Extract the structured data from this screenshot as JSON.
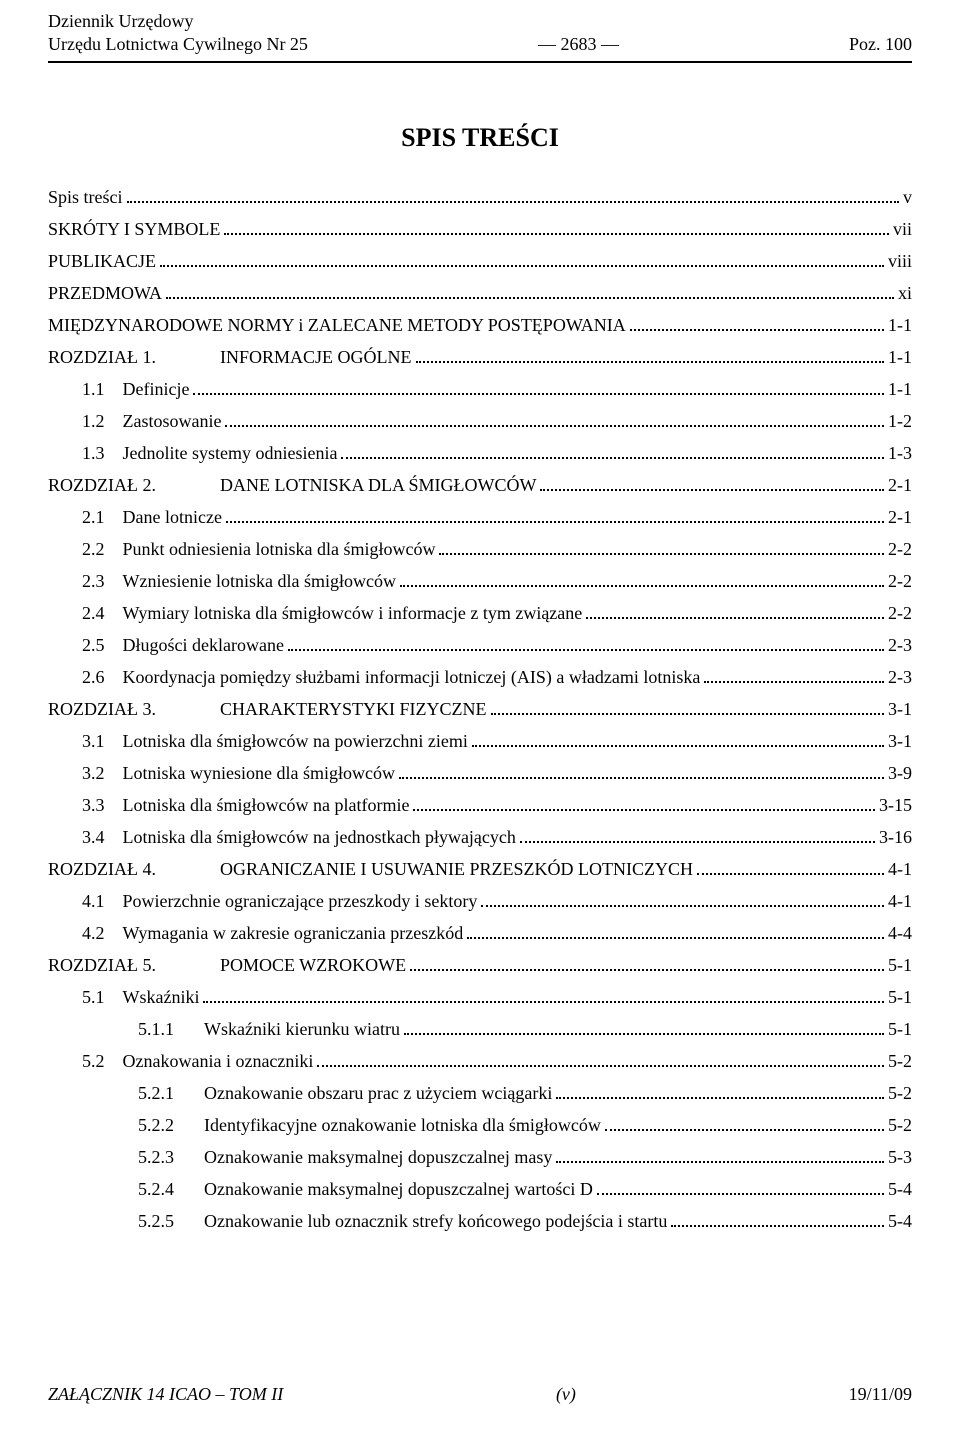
{
  "header": {
    "left_line1": "Dziennik Urzędowy",
    "left_line2": "Urzędu Lotnictwa Cywilnego Nr 25",
    "center": "— 2683 —",
    "right": "Poz. 100"
  },
  "title": "SPIS TREŚCI",
  "toc": [
    {
      "type": "top",
      "label": "Spis treści",
      "page": "v"
    },
    {
      "type": "top",
      "label": "SKRÓTY I SYMBOLE",
      "page": "vii"
    },
    {
      "type": "top",
      "label": "PUBLIKACJE",
      "page": " viii"
    },
    {
      "type": "top",
      "label": "PRZEDMOWA",
      "page": "xi"
    },
    {
      "type": "top",
      "label": "MIĘDZYNARODOWE NORMY i  ZALECANE METODY POSTĘPOWANIA",
      "page": " 1-1"
    },
    {
      "type": "chapter",
      "label": "ROZDZIAŁ 1.",
      "section": "INFORMACJE OGÓLNE",
      "page": " 1-1"
    },
    {
      "type": "sub1",
      "num": "1.1",
      "label": "Definicje",
      "page": " 1-1"
    },
    {
      "type": "sub1",
      "num": "1.2",
      "label": "Zastosowanie",
      "page": " 1-2"
    },
    {
      "type": "sub1",
      "num": "1.3",
      "label": "Jednolite systemy odniesienia",
      "page": " 1-3"
    },
    {
      "type": "chapter",
      "label": "ROZDZIAŁ 2.",
      "section": "DANE LOTNISKA DLA ŚMIGŁOWCÓW",
      "page": " 2-1"
    },
    {
      "type": "sub1",
      "num": "2.1",
      "label": "Dane lotnicze",
      "page": " 2-1"
    },
    {
      "type": "sub1",
      "num": "2.2",
      "label": "Punkt odniesienia lotniska dla śmigłowców",
      "page": " 2-2"
    },
    {
      "type": "sub1",
      "num": "2.3",
      "label": "Wzniesienie lotniska dla śmigłowców",
      "page": " 2-2"
    },
    {
      "type": "sub1",
      "num": "2.4",
      "label": "Wymiary lotniska dla śmigłowców i informacje z tym związane",
      "page": "2-2"
    },
    {
      "type": "sub1",
      "num": "2.5",
      "label": "Długości deklarowane",
      "page": " 2-3"
    },
    {
      "type": "sub1",
      "num": "2.6",
      "label": "Koordynacja pomiędzy służbami informacji lotniczej (AIS) a  władzami lotniska",
      "page": " 2-3"
    },
    {
      "type": "chapter",
      "label": "ROZDZIAŁ 3.",
      "section": "CHARAKTERYSTYKI FIZYCZNE",
      "page": " 3-1"
    },
    {
      "type": "sub1",
      "num": "3.1",
      "label": "Lotniska dla śmigłowców na powierzchni ziemi",
      "page": " 3-1"
    },
    {
      "type": "sub1",
      "num": "3.2",
      "label": "Lotniska wyniesione dla śmigłowców",
      "page": " 3-9"
    },
    {
      "type": "sub1",
      "num": "3.3",
      "label": "Lotniska dla śmigłowców na platformie",
      "page": " 3-15"
    },
    {
      "type": "sub1",
      "num": "3.4",
      "label": "Lotniska dla śmigłowców na jednostkach pływających",
      "page": " 3-16"
    },
    {
      "type": "chapter",
      "label": "ROZDZIAŁ 4.",
      "section": "OGRANICZANIE I USUWANIE PRZESZKÓD LOTNICZYCH",
      "page": " 4-1"
    },
    {
      "type": "sub1",
      "num": "4.1",
      "label": "Powierzchnie ograniczające przeszkody i sektory",
      "page": " 4-1"
    },
    {
      "type": "sub1",
      "num": "4.2",
      "label": "Wymagania w zakresie ograniczania przeszkód",
      "page": " 4-4"
    },
    {
      "type": "chapter",
      "label": "ROZDZIAŁ 5.",
      "section": "POMOCE WZROKOWE",
      "page": " 5-1"
    },
    {
      "type": "sub1",
      "num": "5.1",
      "label": "Wskaźniki",
      "page": " 5-1"
    },
    {
      "type": "sub2",
      "num": "5.1.1",
      "label": "Wskaźniki kierunku wiatru",
      "page": "5-1"
    },
    {
      "type": "sub1",
      "num": "5.2",
      "label": "Oznakowania i oznaczniki",
      "page": " 5-2"
    },
    {
      "type": "sub2",
      "num": "5.2.1",
      "label": "Oznakowanie obszaru prac z użyciem wciągarki",
      "page": "5-2"
    },
    {
      "type": "sub2",
      "num": "5.2.2",
      "label": "Identyfikacyjne oznakowanie lotniska dla śmigłowców",
      "page": "5-2"
    },
    {
      "type": "sub2",
      "num": "5.2.3",
      "label": "Oznakowanie maksymalnej dopuszczalnej masy",
      "page": "5-3"
    },
    {
      "type": "sub2",
      "num": "5.2.4",
      "label": "Oznakowanie maksymalnej dopuszczalnej wartości D",
      "page": "5-4"
    },
    {
      "type": "sub2",
      "num": "5.2.5",
      "label": "Oznakowanie lub oznacznik strefy końcowego podejścia i startu",
      "page": "5-4"
    }
  ],
  "footer": {
    "left": "ZAŁĄCZNIK 14 ICAO – TOM II",
    "center": "(v)",
    "right": "19/11/09"
  }
}
